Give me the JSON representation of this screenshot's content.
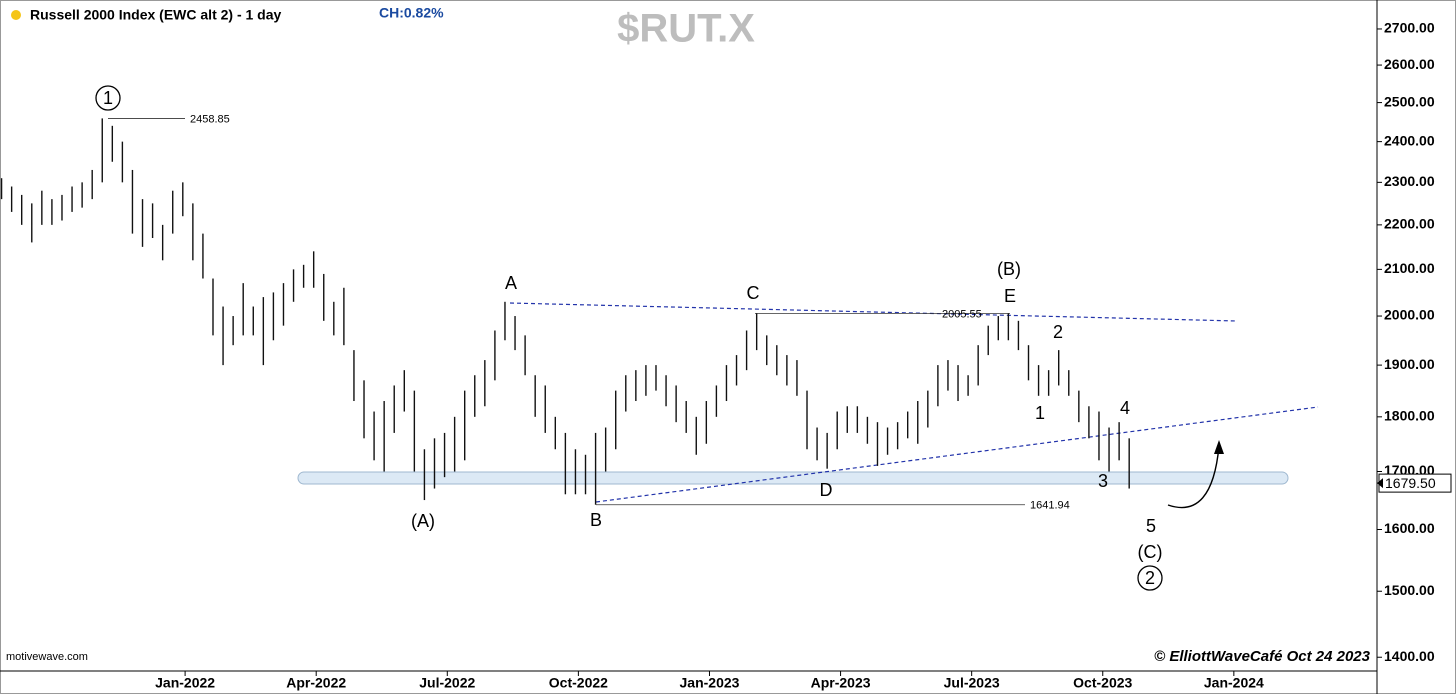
{
  "chart_data": {
    "type": "range_bar",
    "title": "Russell 2000 Index (EWC alt 2) - 1 day",
    "change": "CH:0.82%",
    "symbol": "$RUT.X",
    "source": "motivewave.com",
    "credit": "© ElliottWaveCafé Oct 24 2023",
    "log_scale": true,
    "grid": false,
    "color": "#111111",
    "xlim": [
      2021.647,
      2024.273
    ],
    "xticks": [
      {
        "value": 2022.0,
        "label": "Jan-2022"
      },
      {
        "value": 2022.25,
        "label": "Apr-2022"
      },
      {
        "value": 2022.5,
        "label": "Jul-2022"
      },
      {
        "value": 2022.75,
        "label": "Oct-2022"
      },
      {
        "value": 2023.0,
        "label": "Jan-2023"
      },
      {
        "value": 2023.25,
        "label": "Apr-2023"
      },
      {
        "value": 2023.5,
        "label": "Jul-2023"
      },
      {
        "value": 2023.75,
        "label": "Oct-2023"
      },
      {
        "value": 2024.0,
        "label": "Jan-2024"
      }
    ],
    "ylim": [
      1380,
      2783
    ],
    "yticks": [
      {
        "value": 1400,
        "label": "1400.00"
      },
      {
        "value": 1500,
        "label": "1500.00"
      },
      {
        "value": 1600,
        "label": "1600.00"
      },
      {
        "value": 1700,
        "label": "1700.00"
      },
      {
        "value": 1800,
        "label": "1800.00"
      },
      {
        "value": 1900,
        "label": "1900.00"
      },
      {
        "value": 2000,
        "label": "2000.00"
      },
      {
        "value": 2100,
        "label": "2100.00"
      },
      {
        "value": 2200,
        "label": "2200.00"
      },
      {
        "value": 2300,
        "label": "2300.00"
      },
      {
        "value": 2400,
        "label": "2400.00"
      },
      {
        "value": 2500,
        "label": "2500.00"
      },
      {
        "value": 2600,
        "label": "2600.00"
      },
      {
        "value": 2700,
        "label": "2700.00"
      }
    ],
    "last_price": {
      "value": 1679.5,
      "label": "1679.50"
    },
    "levels": [
      2458.85,
      2005.55,
      1641.94
    ],
    "annotations": [
      "1",
      "A",
      "C",
      "(B)",
      "E",
      "2",
      "1",
      "4",
      "3",
      "5",
      "(C)",
      "2",
      "(A)",
      "B",
      "D"
    ],
    "x": [
      2021.65,
      2021.6692,
      2021.6884,
      2021.7076,
      2021.7268,
      2021.746,
      2021.7652,
      2021.7844,
      2021.8036,
      2021.8228,
      2021.842,
      2021.8612,
      2021.8804,
      2021.8996,
      2021.9188,
      2021.938,
      2021.9572,
      2021.9764,
      2021.9956,
      2022.0148,
      2022.034,
      2022.0532,
      2022.0724,
      2022.0916,
      2022.1108,
      2022.13,
      2022.1492,
      2022.1684,
      2022.1876,
      2022.2068,
      2022.226,
      2022.2452,
      2022.2644,
      2022.2836,
      2022.3028,
      2022.322,
      2022.3412,
      2022.3604,
      2022.3796,
      2022.3988,
      2022.418,
      2022.4372,
      2022.4564,
      2022.4756,
      2022.4948,
      2022.514,
      2022.5332,
      2022.5524,
      2022.5716,
      2022.5908,
      2022.61,
      2022.6292,
      2022.6484,
      2022.6676,
      2022.6868,
      2022.706,
      2022.7252,
      2022.7444,
      2022.7636,
      2022.7828,
      2022.802,
      2022.8212,
      2022.8404,
      2022.8596,
      2022.8788,
      2022.898,
      2022.9172,
      2022.9364,
      2022.9556,
      2022.9748,
      2022.994,
      2023.0132,
      2023.0324,
      2023.0516,
      2023.0708,
      2023.09,
      2023.1092,
      2023.1284,
      2023.1476,
      2023.1668,
      2023.186,
      2023.2052,
      2023.2244,
      2023.2436,
      2023.2628,
      2023.282,
      2023.3012,
      2023.3204,
      2023.3396,
      2023.3588,
      2023.378,
      2023.3972,
      2023.4164,
      2023.4356,
      2023.4548,
      2023.474,
      2023.4932,
      2023.5124,
      2023.5316,
      2023.5508,
      2023.57,
      2023.5892,
      2023.6084,
      2023.6276,
      2023.6468,
      2023.666,
      2023.6852,
      2023.7044,
      2023.7236,
      2023.7428,
      2023.762,
      2023.7812,
      2023.8004
    ],
    "high": [
      2310,
      2290,
      2270,
      2250,
      2280,
      2260,
      2270,
      2290,
      2300,
      2330,
      2459,
      2440,
      2400,
      2330,
      2260,
      2250,
      2200,
      2280,
      2300,
      2250,
      2180,
      2080,
      2020,
      2000,
      2070,
      2020,
      2040,
      2050,
      2070,
      2100,
      2110,
      2140,
      2090,
      2030,
      2060,
      1930,
      1870,
      1810,
      1830,
      1860,
      1890,
      1850,
      1740,
      1760,
      1770,
      1800,
      1850,
      1880,
      1910,
      1970,
      2030,
      2000,
      1960,
      1880,
      1860,
      1800,
      1770,
      1740,
      1730,
      1770,
      1780,
      1850,
      1880,
      1890,
      1900,
      1900,
      1880,
      1860,
      1830,
      1800,
      1830,
      1860,
      1900,
      1920,
      1970,
      2006,
      1960,
      1940,
      1920,
      1910,
      1850,
      1780,
      1770,
      1810,
      1820,
      1820,
      1800,
      1790,
      1780,
      1790,
      1810,
      1830,
      1850,
      1900,
      1910,
      1900,
      1880,
      1940,
      1980,
      2000,
      2006,
      1990,
      1940,
      1900,
      1890,
      1930,
      1890,
      1850,
      1820,
      1810,
      1780,
      1790,
      1760
    ],
    "low": [
      2260,
      2230,
      2200,
      2160,
      2200,
      2200,
      2210,
      2230,
      2240,
      2260,
      2300,
      2350,
      2300,
      2180,
      2150,
      2170,
      2120,
      2180,
      2220,
      2120,
      2080,
      1960,
      1900,
      1940,
      1960,
      1960,
      1900,
      1950,
      1980,
      2030,
      2060,
      2060,
      1990,
      1960,
      1940,
      1830,
      1760,
      1720,
      1700,
      1770,
      1810,
      1700,
      1650,
      1670,
      1690,
      1700,
      1720,
      1800,
      1820,
      1870,
      1950,
      1930,
      1880,
      1800,
      1770,
      1740,
      1660,
      1660,
      1660,
      1642,
      1700,
      1740,
      1810,
      1830,
      1840,
      1850,
      1820,
      1790,
      1770,
      1730,
      1750,
      1800,
      1830,
      1860,
      1890,
      1930,
      1900,
      1880,
      1860,
      1840,
      1740,
      1720,
      1705,
      1740,
      1770,
      1770,
      1750,
      1710,
      1730,
      1740,
      1760,
      1750,
      1780,
      1820,
      1850,
      1830,
      1840,
      1860,
      1920,
      1950,
      1950,
      1930,
      1870,
      1840,
      1840,
      1860,
      1840,
      1790,
      1760,
      1720,
      1700,
      1720,
      1670
    ]
  }
}
